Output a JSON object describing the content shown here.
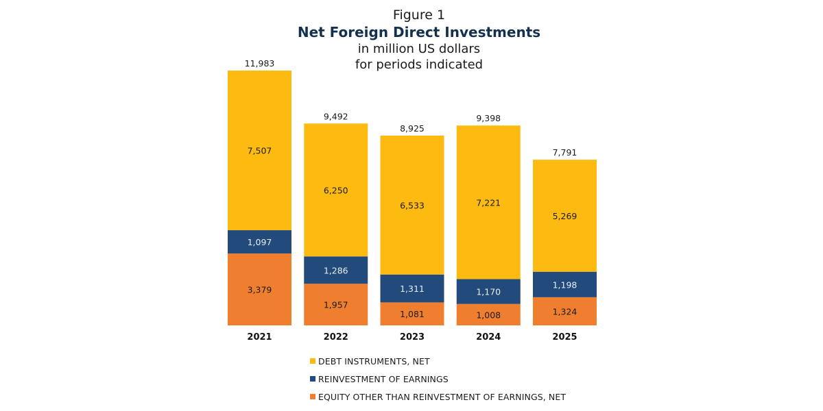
{
  "title": {
    "figure": "Figure 1",
    "main": "Net Foreign Direct Investments",
    "sub1": "in million US dollars",
    "sub2": "for periods indicated"
  },
  "colors": {
    "debt": "#fdbb12",
    "reinvest": "#224a7a",
    "equity": "#ef7f2f",
    "title": "#13314f"
  },
  "chart_data": {
    "type": "bar",
    "stacked": true,
    "title": "Net Foreign Direct Investments",
    "subtitle": "in million US dollars for periods indicated",
    "xlabel": "",
    "ylabel": "",
    "ylim": [
      0,
      12000
    ],
    "grid": false,
    "legend_position": "bottom",
    "categories": [
      "2021",
      "2022",
      "2023",
      "2024",
      "2025"
    ],
    "totals": [
      11983,
      9492,
      8925,
      9398,
      7791
    ],
    "total_labels": [
      "11,983",
      "9,492",
      "8,925",
      "9,398",
      "7,791"
    ],
    "series": [
      {
        "key": "equity",
        "name": "EQUITY OTHER THAN REINVESTMENT OF EARNINGS, NET",
        "values": [
          3379,
          1957,
          1081,
          1008,
          1324
        ],
        "labels": [
          "3,379",
          "1,957",
          "1,081",
          "1,008",
          "1,324"
        ]
      },
      {
        "key": "reinvest",
        "name": "REINVESTMENT OF EARNINGS",
        "values": [
          1097,
          1286,
          1311,
          1170,
          1198
        ],
        "labels": [
          "1,097",
          "1,286",
          "1,311",
          "1,170",
          "1,198"
        ]
      },
      {
        "key": "debt",
        "name": "DEBT INSTRUMENTS, NET",
        "values": [
          7507,
          6250,
          6533,
          7221,
          5269
        ],
        "labels": [
          "7,507",
          "6,250",
          "6,533",
          "7,221",
          "5,269"
        ]
      }
    ]
  },
  "legend": [
    {
      "key": "debt",
      "label": "DEBT INSTRUMENTS, NET"
    },
    {
      "key": "reinvest",
      "label": "REINVESTMENT OF EARNINGS"
    },
    {
      "key": "equity",
      "label": "EQUITY OTHER THAN REINVESTMENT OF EARNINGS, NET"
    }
  ]
}
